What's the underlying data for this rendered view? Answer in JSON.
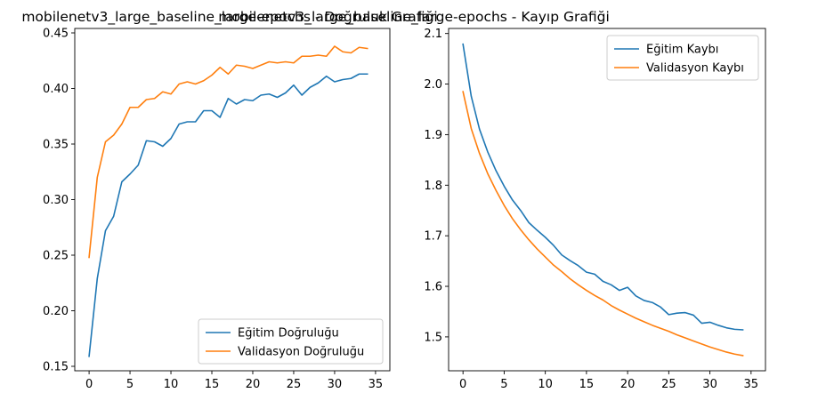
{
  "chart_data": [
    {
      "type": "line",
      "title": "mobilenetv3_large_baseline_large-epochs - Doğruluk Grafiği",
      "xlabel": "",
      "ylabel": "",
      "xlim": [
        -1.75,
        36.75
      ],
      "ylim": [
        0.146,
        0.454
      ],
      "xticks": [
        0,
        5,
        10,
        15,
        20,
        25,
        30,
        35
      ],
      "yticks": [
        0.15,
        0.2,
        0.25,
        0.3,
        0.35,
        0.4,
        0.45
      ],
      "ytick_labels": [
        "0.15",
        "0.20",
        "0.25",
        "0.30",
        "0.35",
        "0.40",
        "0.45"
      ],
      "grid": false,
      "legend_position": "lower-right",
      "x": [
        0,
        1,
        2,
        3,
        4,
        5,
        6,
        7,
        8,
        9,
        10,
        11,
        12,
        13,
        14,
        15,
        16,
        17,
        18,
        19,
        20,
        21,
        22,
        23,
        24,
        25,
        26,
        27,
        28,
        29,
        30,
        31,
        32,
        33,
        34
      ],
      "series": [
        {
          "name": "Eğitim Doğruluğu",
          "color": "#1f77b4",
          "values": [
            0.159,
            0.229,
            0.272,
            0.285,
            0.316,
            0.323,
            0.331,
            0.353,
            0.352,
            0.348,
            0.355,
            0.368,
            0.37,
            0.37,
            0.38,
            0.38,
            0.374,
            0.391,
            0.386,
            0.39,
            0.389,
            0.394,
            0.395,
            0.392,
            0.396,
            0.403,
            0.394,
            0.401,
            0.405,
            0.411,
            0.406,
            0.408,
            0.409,
            0.413,
            0.413
          ]
        },
        {
          "name": "Validasyon Doğruluğu",
          "color": "#ff7f0e",
          "values": [
            0.248,
            0.32,
            0.352,
            0.358,
            0.368,
            0.383,
            0.383,
            0.39,
            0.391,
            0.397,
            0.395,
            0.404,
            0.406,
            0.404,
            0.407,
            0.412,
            0.419,
            0.413,
            0.421,
            0.42,
            0.418,
            0.421,
            0.424,
            0.423,
            0.424,
            0.423,
            0.429,
            0.429,
            0.43,
            0.429,
            0.438,
            0.433,
            0.432,
            0.437,
            0.436
          ]
        }
      ]
    },
    {
      "type": "line",
      "title": "mobilenetv3_large_baseline_large-epochs - Kayıp Grafiği",
      "xlabel": "",
      "ylabel": "",
      "xlim": [
        -1.75,
        36.75
      ],
      "ylim": [
        1.433,
        2.11
      ],
      "xticks": [
        0,
        5,
        10,
        15,
        20,
        25,
        30,
        35
      ],
      "yticks": [
        1.5,
        1.6,
        1.7,
        1.8,
        1.9,
        2.0,
        2.1
      ],
      "ytick_labels": [
        "1.5",
        "1.6",
        "1.7",
        "1.8",
        "1.9",
        "2.0",
        "2.1"
      ],
      "grid": false,
      "legend_position": "upper-right",
      "x": [
        0,
        1,
        2,
        3,
        4,
        5,
        6,
        7,
        8,
        9,
        10,
        11,
        12,
        13,
        14,
        15,
        16,
        17,
        18,
        19,
        20,
        21,
        22,
        23,
        24,
        25,
        26,
        27,
        28,
        29,
        30,
        31,
        32,
        33,
        34
      ],
      "series": [
        {
          "name": "Eğitim Kaybı",
          "color": "#1f77b4",
          "values": [
            2.079,
            1.976,
            1.911,
            1.866,
            1.829,
            1.798,
            1.771,
            1.75,
            1.726,
            1.711,
            1.697,
            1.681,
            1.662,
            1.651,
            1.641,
            1.628,
            1.624,
            1.61,
            1.603,
            1.592,
            1.598,
            1.581,
            1.572,
            1.568,
            1.559,
            1.544,
            1.547,
            1.548,
            1.543,
            1.527,
            1.529,
            1.523,
            1.518,
            1.515,
            1.514
          ]
        },
        {
          "name": "Validasyon Kaybı",
          "color": "#ff7f0e",
          "values": [
            1.985,
            1.912,
            1.863,
            1.823,
            1.79,
            1.76,
            1.734,
            1.712,
            1.692,
            1.674,
            1.658,
            1.642,
            1.629,
            1.615,
            1.603,
            1.592,
            1.582,
            1.573,
            1.562,
            1.553,
            1.545,
            1.537,
            1.53,
            1.523,
            1.517,
            1.511,
            1.504,
            1.498,
            1.492,
            1.486,
            1.48,
            1.475,
            1.47,
            1.466,
            1.463
          ]
        }
      ]
    }
  ]
}
